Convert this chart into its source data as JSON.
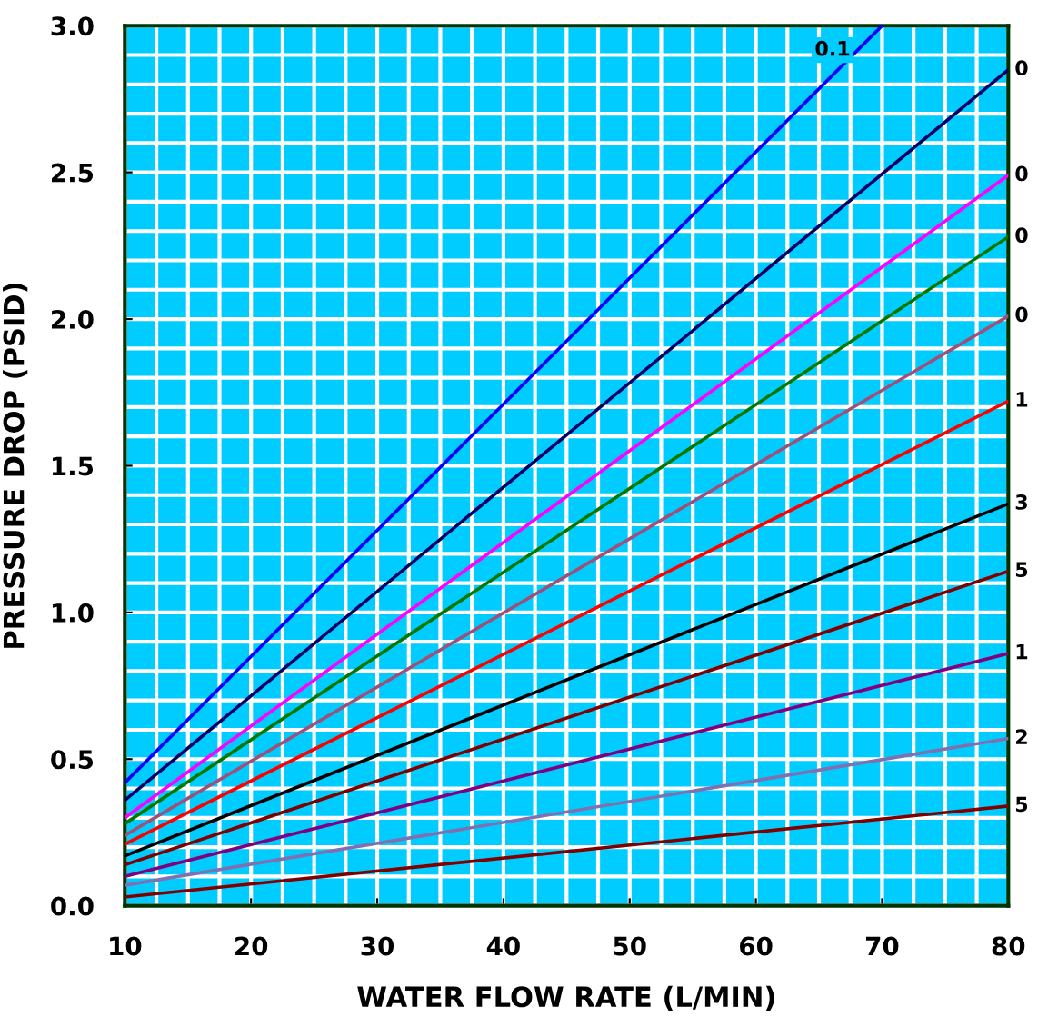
{
  "chart_data": {
    "type": "line",
    "xlabel": "WATER FLOW RATE (L/MIN)",
    "ylabel": "PRESSURE DROP (PSID)",
    "xlim": [
      10,
      80
    ],
    "xticks": [
      10,
      20,
      30,
      40,
      50,
      60,
      70,
      80
    ],
    "ylim": [
      0,
      3.0
    ],
    "yticks": [
      {
        "value": 0,
        "label": "0.0"
      },
      0.5,
      {
        "value": 1,
        "label": "1.0"
      },
      1.5,
      {
        "value": 2,
        "label": "2.0"
      },
      2.5,
      {
        "value": 3,
        "label": "3.0"
      }
    ],
    "grid": true,
    "marker": "none",
    "line_style": "solid",
    "series": [
      {
        "name": "0.1",
        "color": "#0000ff",
        "x": [
          10,
          70
        ],
        "values": [
          0.42,
          3.0
        ]
      },
      {
        "name": "0",
        "color": "#000066",
        "x": [
          10,
          80
        ],
        "values": [
          0.36,
          2.85
        ]
      },
      {
        "name": "0",
        "color": "#ff00ff",
        "x": [
          10,
          80
        ],
        "values": [
          0.3,
          2.49
        ]
      },
      {
        "name": "0",
        "color": "#007700",
        "x": [
          10,
          80
        ],
        "values": [
          0.28,
          2.28
        ]
      },
      {
        "name": "0",
        "color": "#a05078",
        "x": [
          10,
          80
        ],
        "values": [
          0.24,
          2.01
        ]
      },
      {
        "name": "1",
        "color": "#ff0000",
        "x": [
          10,
          80
        ],
        "values": [
          0.21,
          1.72
        ]
      },
      {
        "name": "3",
        "color": "#000000",
        "x": [
          10,
          80
        ],
        "values": [
          0.17,
          1.37
        ]
      },
      {
        "name": "5",
        "color": "#800000",
        "x": [
          10,
          80
        ],
        "values": [
          0.14,
          1.14
        ]
      },
      {
        "name": "1",
        "color": "#800080",
        "x": [
          10,
          80
        ],
        "values": [
          0.1,
          0.86
        ]
      },
      {
        "name": "2",
        "color": "#8070b0",
        "x": [
          10,
          80
        ],
        "values": [
          0.07,
          0.57
        ]
      },
      {
        "name": "5",
        "color": "#800000",
        "x": [
          10,
          80
        ],
        "values": [
          0.03,
          0.34
        ]
      }
    ]
  }
}
